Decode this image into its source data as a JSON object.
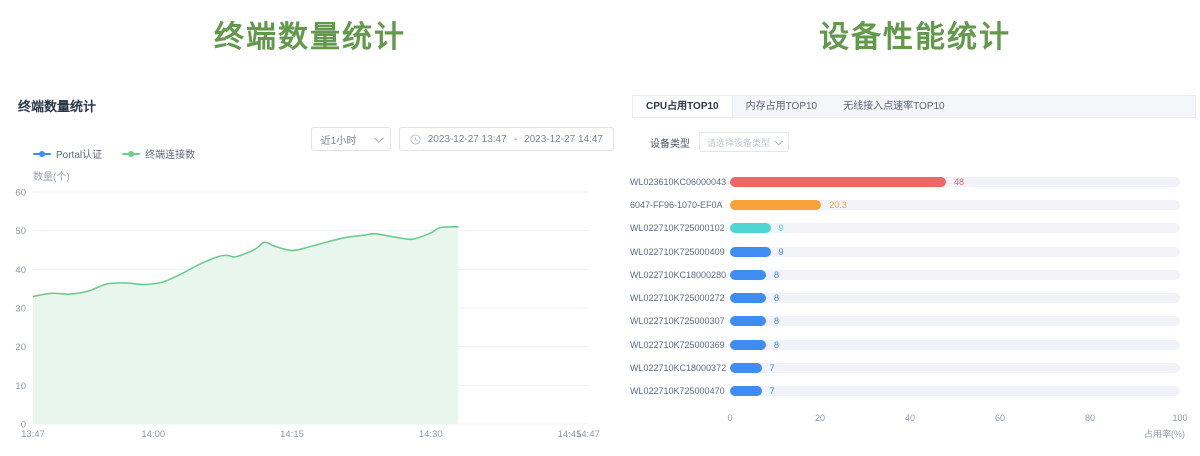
{
  "left": {
    "heading": "终端数量统计",
    "panel_title": "终端数量统计",
    "range_select": {
      "value": "近1小时"
    },
    "date_range": {
      "start": "2023-12-27 13:47",
      "separator": "-",
      "end": "2023-12-27 14:47"
    },
    "icons": {
      "range_select": "chevron-down",
      "date_picker": "clock"
    }
  },
  "right": {
    "heading": "设备性能统计",
    "tabs": [
      {
        "label": "CPU占用TOP10",
        "active": true
      },
      {
        "label": "内存占用TOP10",
        "active": false
      },
      {
        "label": "无线接入点速率TOP10",
        "active": false
      }
    ],
    "filter": {
      "label": "设备类型",
      "placeholder": "请选择设备类型"
    },
    "icons": {
      "device_select": "chevron-down"
    }
  },
  "chart_data": [
    {
      "type": "area",
      "title": "终端数量统计",
      "ylabel": "数量(个)",
      "ylim": [
        0,
        60
      ],
      "yticks": [
        0,
        10,
        20,
        30,
        40,
        50,
        60
      ],
      "xticks": [
        "13:47",
        "14:00",
        "14:15",
        "14:30",
        "14:45",
        "14:47"
      ],
      "x_start": "13:47",
      "x_end": "14:47",
      "grid": true,
      "legend_position": "top-left",
      "colors": {
        "grid": "#edf0f5",
        "axis_label": "#8e99ad"
      },
      "series": [
        {
          "name": "Portal认证",
          "color": "#3f8cf3",
          "fill": "",
          "points": []
        },
        {
          "name": "终端连接数",
          "color": "#6ecb8e",
          "fill": "#e8f6ed",
          "points": [
            [
              "13:47",
              33
            ],
            [
              "13:49",
              33.8
            ],
            [
              "13:51",
              33.6
            ],
            [
              "13:53",
              34.4
            ],
            [
              "13:55",
              36.2
            ],
            [
              "13:57",
              36.5
            ],
            [
              "13:59",
              36.1
            ],
            [
              "14:01",
              36.7
            ],
            [
              "14:03",
              38.8
            ],
            [
              "14:05",
              41.3
            ],
            [
              "14:07",
              43.3
            ],
            [
              "14:08",
              43.6
            ],
            [
              "14:09",
              43.3
            ],
            [
              "14:11",
              45.2
            ],
            [
              "14:12",
              47.0
            ],
            [
              "14:13",
              46.1
            ],
            [
              "14:15",
              44.9
            ],
            [
              "14:17",
              45.9
            ],
            [
              "14:19",
              47.2
            ],
            [
              "14:21",
              48.3
            ],
            [
              "14:23",
              48.9
            ],
            [
              "14:24",
              49.2
            ],
            [
              "14:26",
              48.4
            ],
            [
              "14:28",
              47.8
            ],
            [
              "14:30",
              49.4
            ],
            [
              "14:31",
              50.8
            ],
            [
              "14:33",
              51.0
            ]
          ]
        }
      ]
    },
    {
      "type": "bar",
      "orientation": "horizontal",
      "title": "CPU占用TOP10",
      "xlabel": "占用率(%)",
      "xlim": [
        0,
        100
      ],
      "xticks": [
        0,
        20,
        40,
        60,
        80,
        100
      ],
      "track_color": "#f1f3f8",
      "categories": [
        "WL023610KC06000043",
        "6047-FF96-1070-EF0A",
        "WL022710K725000102",
        "WL022710K725000409",
        "WL022710KC18000280",
        "WL022710K725000272",
        "WL022710K725000307",
        "WL022710K725000369",
        "WL022710KC18000372",
        "WL022710K725000470"
      ],
      "values": [
        48,
        20.3,
        9,
        9,
        8,
        8,
        8,
        8,
        7,
        7
      ],
      "value_labels": [
        "48",
        "20.3",
        "9",
        "9",
        "8",
        "8",
        "8",
        "8",
        "7",
        "7"
      ],
      "bar_colors": [
        "#ee6666",
        "#f7a23b",
        "#4fd6d2",
        "#3f8cf3",
        "#3f8cf3",
        "#3f8cf3",
        "#3f8cf3",
        "#3f8cf3",
        "#3f8cf3",
        "#3f8cf3"
      ]
    }
  ]
}
